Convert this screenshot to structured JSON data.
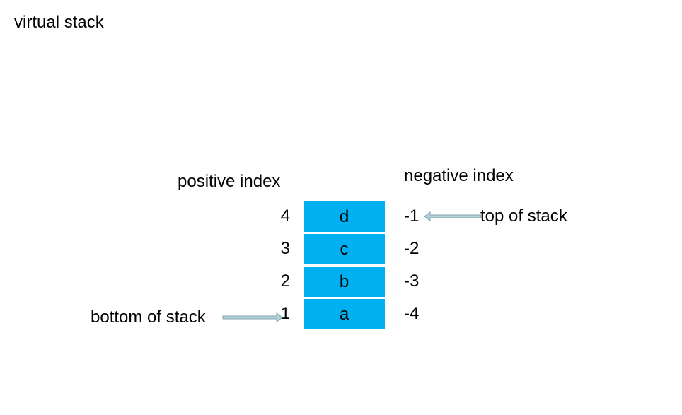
{
  "title": "virtual stack",
  "headers": {
    "positive": "positive index",
    "negative": "negative index"
  },
  "stack": {
    "cell_color": "#00B0F0",
    "cells": [
      {
        "value": "d",
        "positive": "4",
        "negative": "-1"
      },
      {
        "value": "c",
        "positive": "3",
        "negative": "-2"
      },
      {
        "value": "b",
        "positive": "2",
        "negative": "-3"
      },
      {
        "value": "a",
        "positive": "1",
        "negative": "-4"
      }
    ]
  },
  "labels": {
    "top": "top of stack",
    "bottom": "bottom of stack"
  },
  "arrow_color": "#B4D3D8",
  "arrow_stroke": "#7FA6AC"
}
